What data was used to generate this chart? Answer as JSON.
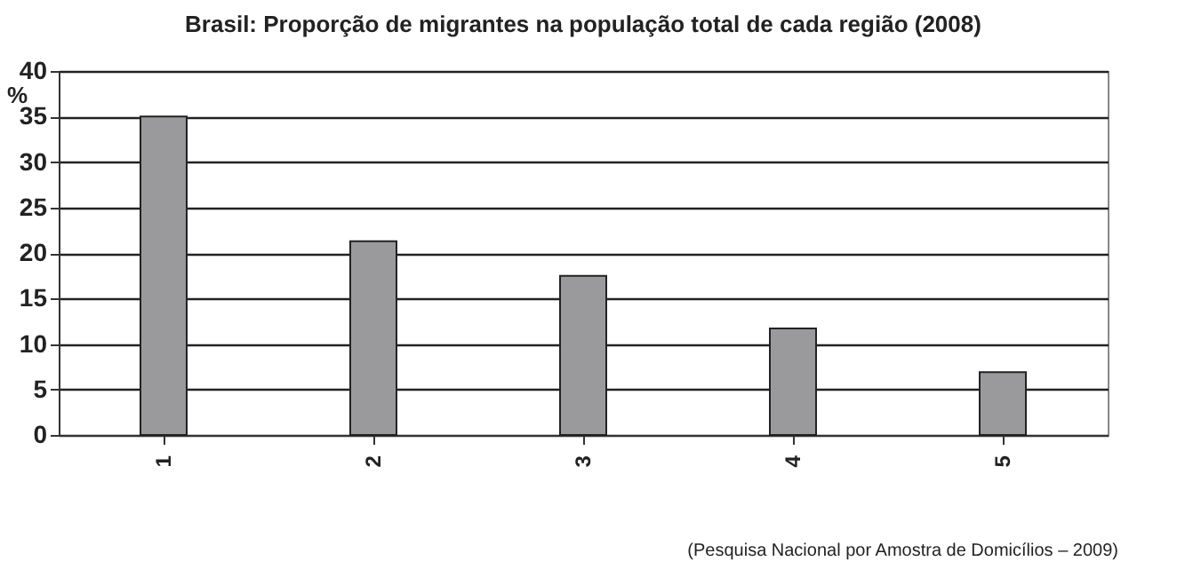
{
  "chart_data": {
    "type": "bar",
    "title": "Brasil: Proporção de migrantes na população total de cada região (2008)",
    "ylabel": "%",
    "categories": [
      "1",
      "2",
      "3",
      "4",
      "5"
    ],
    "values": [
      35,
      21.3,
      17.5,
      11.7,
      6.9
    ],
    "color": "#9a9a9c",
    "ylim": [
      0,
      40
    ],
    "yticks": [
      0,
      5,
      10,
      15,
      20,
      25,
      30,
      35,
      40
    ],
    "grid": "y",
    "annotations": [
      "(Pesquisa Nacional por Amostra de Domicílios – 2009)"
    ]
  }
}
